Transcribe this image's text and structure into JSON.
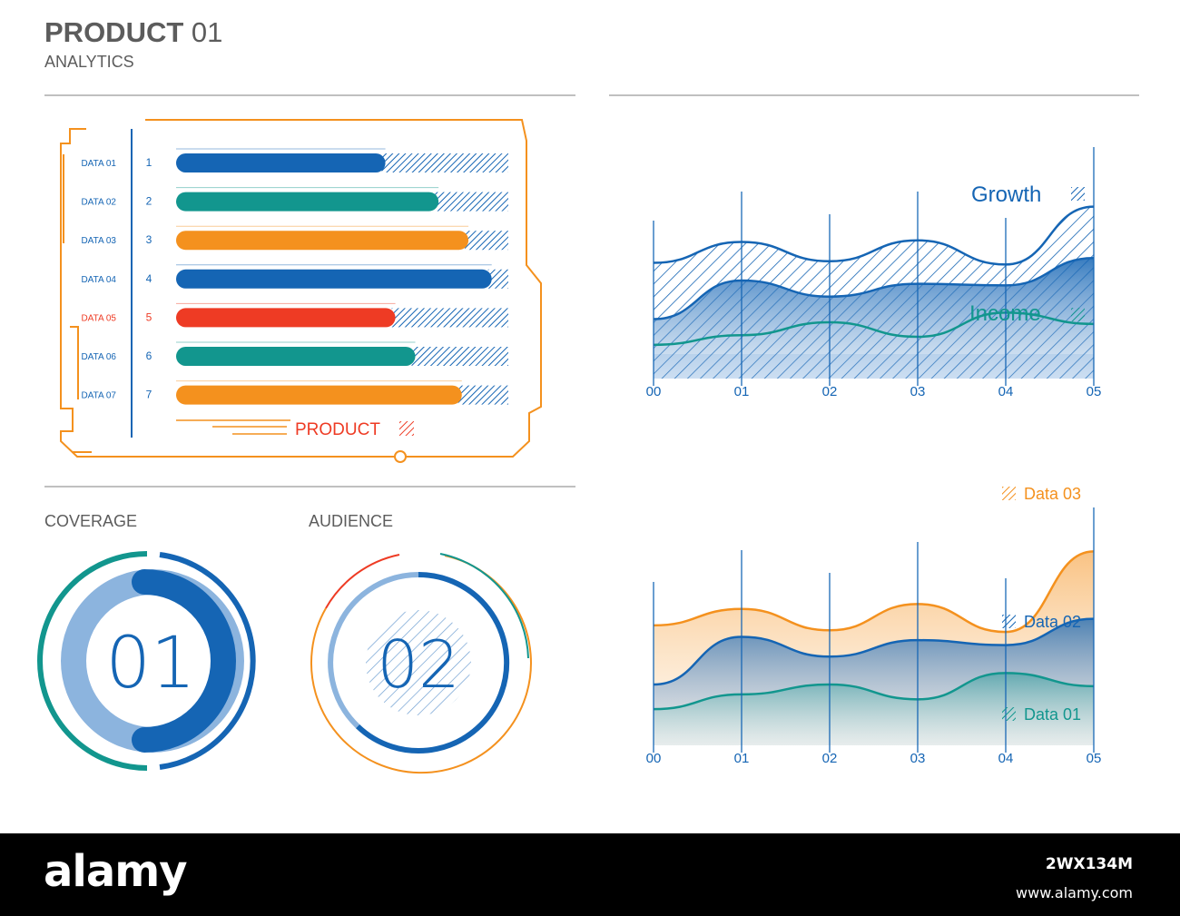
{
  "header": {
    "title_bold": "PRODUCT",
    "title_num": "01",
    "subtitle": "ANALYTICS"
  },
  "colors": {
    "blue": "#1565b4",
    "teal": "#12968e",
    "orange": "#f4911e",
    "red": "#ee3b24",
    "light_blue": "#8cb4de",
    "gray": "#5c5c5c"
  },
  "bar_panel": {
    "legend_label": "PRODUCT"
  },
  "gauges": {
    "coverage": {
      "label": "COVERAGE",
      "value": "01"
    },
    "audience": {
      "label": "AUDIENCE",
      "value": "02"
    }
  },
  "chart_data": [
    {
      "type": "bar",
      "orientation": "horizontal",
      "categories": [
        "DATA 01",
        "DATA 02",
        "DATA 03",
        "DATA 04",
        "DATA 05",
        "DATA 06",
        "DATA 07"
      ],
      "index_labels": [
        "1",
        "2",
        "3",
        "4",
        "5",
        "6",
        "7"
      ],
      "values": [
        63,
        79,
        88,
        95,
        66,
        72,
        86
      ],
      "highlight_index": 4,
      "xlim": [
        0,
        100
      ],
      "legend": [
        "PRODUCT"
      ]
    },
    {
      "type": "area",
      "x": [
        "00",
        "01",
        "02",
        "03",
        "04",
        "05"
      ],
      "ylim": [
        0,
        100
      ],
      "series": [
        {
          "name": "Growth",
          "values": [
            72,
            85,
            73,
            86,
            71,
            107
          ],
          "style": "hatched"
        },
        {
          "name": "",
          "values": [
            37,
            61,
            51,
            59,
            58,
            75
          ],
          "style": "gradient"
        },
        {
          "name": "Income",
          "values": [
            21,
            27,
            35,
            26,
            41,
            34
          ],
          "style": "line"
        }
      ]
    },
    {
      "type": "area",
      "x": [
        "00",
        "01",
        "02",
        "03",
        "04",
        "05"
      ],
      "ylim": [
        0,
        100
      ],
      "series": [
        {
          "name": "Data 03",
          "values": [
            73,
            83,
            70,
            86,
            69,
            118
          ]
        },
        {
          "name": "Data 02",
          "values": [
            37,
            66,
            54,
            64,
            61,
            77
          ]
        },
        {
          "name": "Data 01",
          "values": [
            22,
            31,
            37,
            28,
            44,
            36
          ]
        }
      ]
    }
  ],
  "footer": {
    "brand": "alamy",
    "image_code": "2WX134M",
    "site": "www.alamy.com"
  }
}
